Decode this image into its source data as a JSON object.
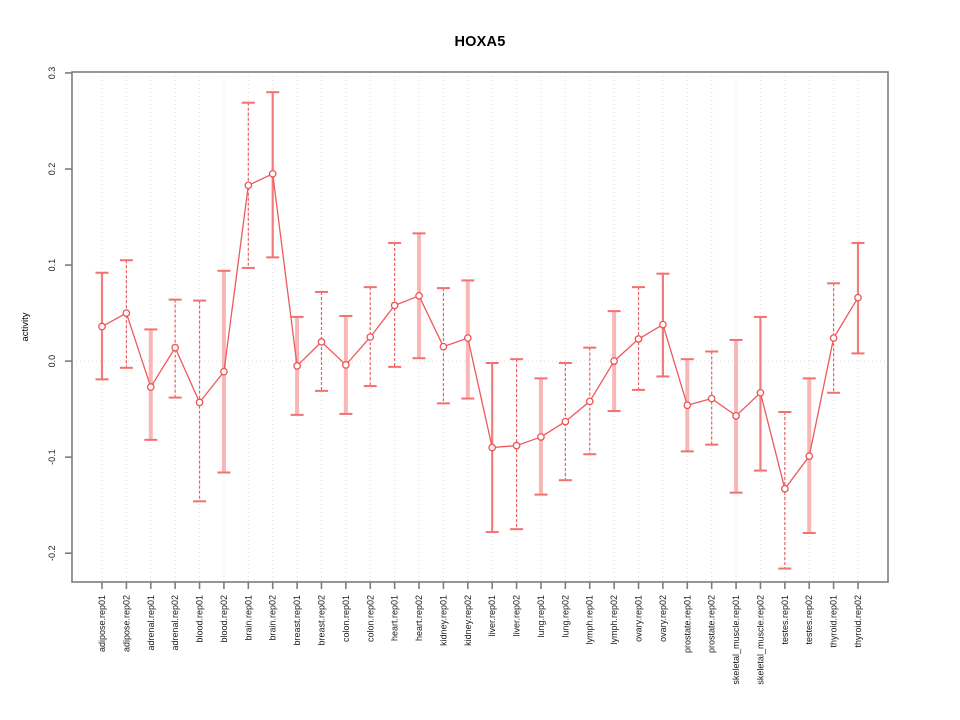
{
  "title": "HOXA5",
  "ylabel": "activity",
  "chart_data": {
    "type": "line",
    "title": "HOXA5",
    "xlabel": "",
    "ylabel": "activity",
    "legend": "none",
    "grid": "vertical dotted gridline per category; horizontal dotted line at y=0",
    "ylim": [
      -0.23,
      0.301
    ],
    "ytick_values": [
      -0.2,
      -0.1,
      0.0,
      0.1,
      0.2,
      0.3
    ],
    "ytick_labels": [
      "-0.2",
      "-0.1",
      "0.0",
      "0.1",
      "0.2",
      "0.3"
    ],
    "categories": [
      "adipose.rep01",
      "adipose.rep02",
      "adrenal.rep01",
      "adrenal.rep02",
      "blood.rep01",
      "blood.rep02",
      "brain.rep01",
      "brain.rep02",
      "breast.rep01",
      "breast.rep02",
      "colon.rep01",
      "colon.rep02",
      "heart.rep01",
      "heart.rep02",
      "kidney.rep01",
      "kidney.rep02",
      "liver.rep01",
      "liver.rep02",
      "lung.rep01",
      "lung.rep02",
      "lymph.rep01",
      "lymph.rep02",
      "ovary.rep01",
      "ovary.rep02",
      "prostate.rep01",
      "prostate.rep02",
      "skeletal_muscle.rep01",
      "skeletal_muscle.rep02",
      "testes.rep01",
      "testes.rep02",
      "thyroid.rep01",
      "thyroid.rep02"
    ],
    "series": [
      {
        "name": "activity",
        "marker": "open-circle",
        "values": [
          0.036,
          0.05,
          -0.027,
          0.014,
          -0.043,
          -0.011,
          0.183,
          0.195,
          -0.005,
          0.02,
          -0.004,
          0.025,
          0.058,
          0.068,
          0.015,
          0.024,
          -0.09,
          -0.088,
          -0.079,
          -0.063,
          -0.042,
          0.0,
          0.023,
          0.038,
          -0.046,
          -0.039,
          -0.057,
          -0.033,
          -0.133,
          -0.099,
          0.024,
          0.066
        ],
        "upper": [
          0.092,
          0.105,
          0.033,
          0.064,
          0.063,
          0.094,
          0.269,
          0.28,
          0.046,
          0.072,
          0.047,
          0.077,
          0.123,
          0.133,
          0.076,
          0.084,
          -0.002,
          0.002,
          -0.018,
          -0.002,
          0.014,
          0.052,
          0.077,
          0.091,
          0.002,
          0.01,
          0.022,
          0.046,
          -0.053,
          -0.018,
          0.081,
          0.123
        ],
        "lower": [
          -0.019,
          -0.007,
          -0.082,
          -0.038,
          -0.146,
          -0.116,
          0.097,
          0.108,
          -0.056,
          -0.031,
          -0.055,
          -0.026,
          -0.006,
          0.003,
          -0.044,
          -0.039,
          -0.178,
          -0.175,
          -0.139,
          -0.124,
          -0.097,
          -0.052,
          -0.03,
          -0.016,
          -0.094,
          -0.087,
          -0.137,
          -0.114,
          -0.216,
          -0.179,
          -0.033,
          0.008
        ],
        "error_bar_styles": [
          "solid",
          "dashed",
          "thick",
          "dashed",
          "dashed",
          "thick",
          "dashed",
          "solid",
          "thick",
          "dashed",
          "thick",
          "dashed",
          "dashed",
          "thick",
          "dashed",
          "thick",
          "solid",
          "dashed",
          "thick",
          "dashed",
          "dashed",
          "thick",
          "dashed",
          "solid",
          "thick",
          "dashed",
          "thick",
          "solid",
          "dashed",
          "thick",
          "dashed",
          "solid"
        ]
      }
    ],
    "colors": {
      "point": "#ee5252",
      "line": "#ee5a5a",
      "error_dashed": "#ef5f5f",
      "error_solid": "#f47c7c",
      "error_thick": "#f9b6b6",
      "error_cap": "#f37070",
      "grid": "#dcdcdc",
      "axis": "#7d7d7d",
      "tick_text": "#1a1a1a"
    }
  }
}
